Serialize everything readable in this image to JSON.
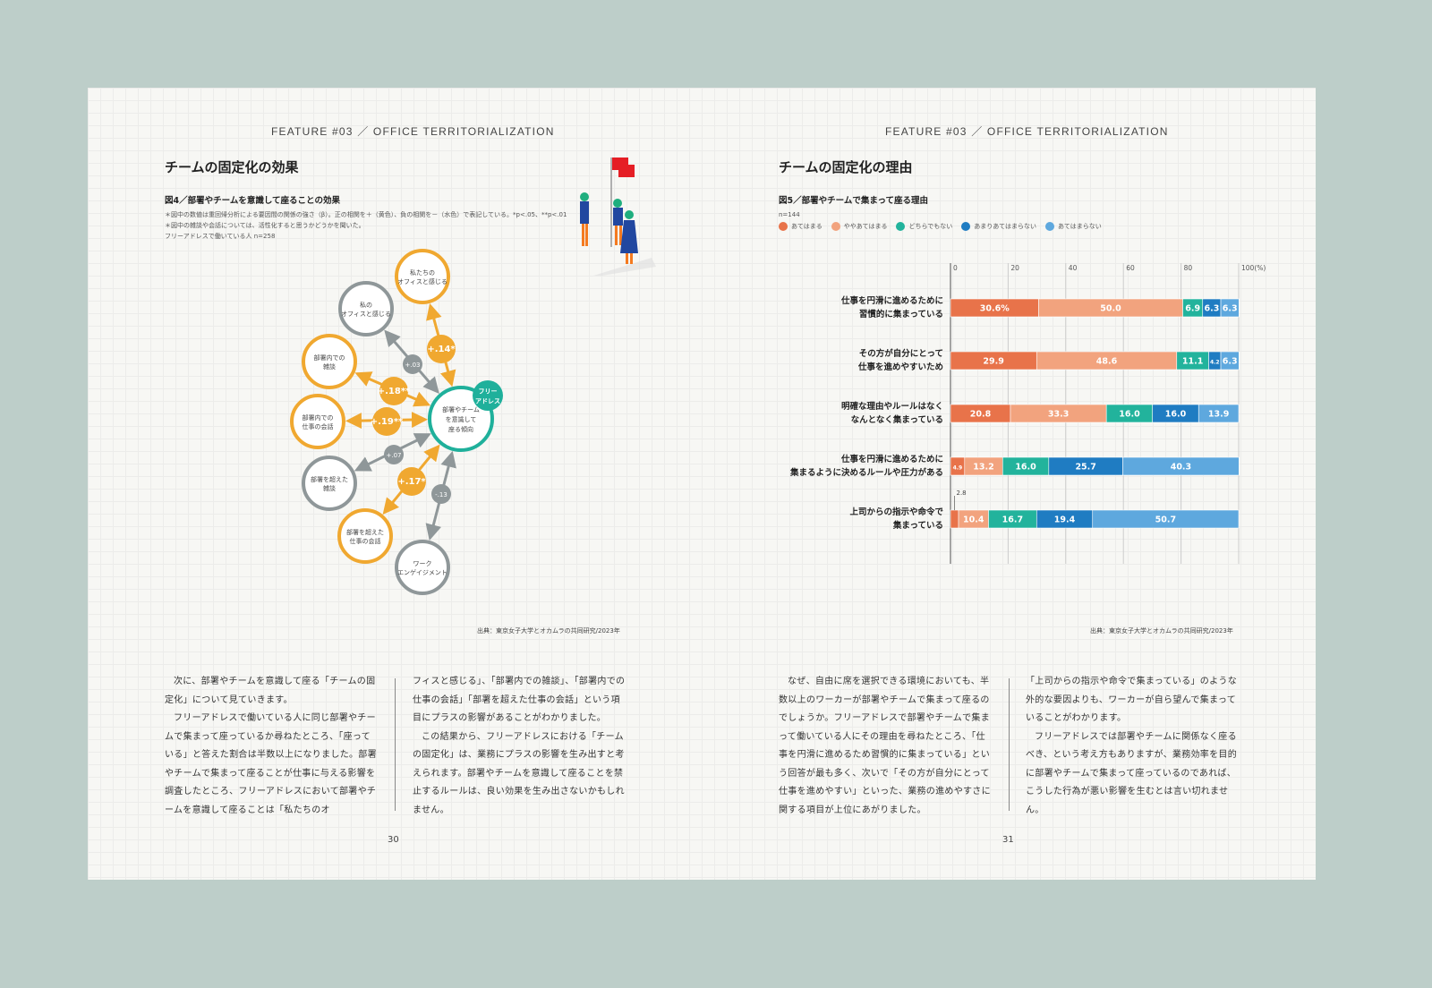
{
  "left": {
    "feature": "FEATURE #03 ／ OFFICE TERRITORIALIZATION",
    "title": "チームの固定化の効果",
    "figure_title": "図4／部署やチームを意識して座ることの効果",
    "notes": [
      "＊図中の数値は重回帰分析による要因間の関係の強さ（β）。正の相関を＋（黄色）、負の相関を－（水色）で表記している。*p<.05、**p<.01",
      "＊図中の雑談や会話については、活性化すると思うかどうかを聞いた。",
      "フリーアドレスで働いている人 n=258"
    ],
    "source": "出典：東京女子大学とオカムラの共同研究/2023年",
    "page": "30",
    "body1": [
      "次に、部署やチームを意識して座る「チームの固定化」について見ていきます。",
      "フリーアドレスで働いている人に同じ部署やチームで集まって座っているか尋ねたところ、「座っている」と答えた割合は半数以上になりました。部署やチームで集まって座ることが仕事に与える影響を調査したところ、フリーアドレスにおいて部署やチームを意識して座ることは「私たちのオ"
    ],
    "body2": [
      "フィスと感じる」、「部署内での雑談」、「部署内での仕事の会話」「部署を超えた仕事の会話」という項目にプラスの影響があることがわかりました。",
      "この結果から、フリーアドレスにおける「チームの固定化」は、業務にプラスの影響を生み出すと考えられます。部署やチームを意識して座ることを禁止するルールは、良い効果を生み出さないかもしれません。"
    ]
  },
  "diagram": {
    "colors": {
      "positive": "#f0a830",
      "neutral": "#8f9799",
      "center": "#1fb09b"
    },
    "center": {
      "label": "部署やチーム\nを意識して\n座る傾向",
      "badge": "フリー\nアドレス"
    },
    "nodes": [
      {
        "label": "私たちの\nオフィスと感じる",
        "coef": "+.14*",
        "sign": "positive"
      },
      {
        "label": "私の\nオフィスと感じる",
        "coef": "+.03",
        "sign": "neutral"
      },
      {
        "label": "部署内での\n雑談",
        "coef": "+.18**",
        "sign": "positive"
      },
      {
        "label": "部署内での\n仕事の会話",
        "coef": "+.19**",
        "sign": "positive"
      },
      {
        "label": "部署を超えた\n雑談",
        "coef": "+.07",
        "sign": "neutral"
      },
      {
        "label": "部署を超えた\n仕事の会話",
        "coef": "+.17*",
        "sign": "positive"
      },
      {
        "label": "ワーク\nエンゲイジメント",
        "coef": "-.13",
        "sign": "neutral"
      }
    ]
  },
  "right": {
    "feature": "FEATURE #03 ／ OFFICE TERRITORIALIZATION",
    "title": "チームの固定化の理由",
    "figure_title": "図5／部署やチームで集まって座る理由",
    "n": "n=144",
    "source": "出典：東京女子大学とオカムラの共同研究/2023年",
    "page": "31",
    "body1": [
      "なぜ、自由に席を選択できる環境においても、半数以上のワーカーが部署やチームで集まって座るのでしょうか。フリーアドレスで部署やチームで集まって働いている人にその理由を尋ねたところ、「仕事を円滑に進めるため習慣的に集まっている」という回答が最も多く、次いで「その方が自分にとって仕事を進めやすい」といった、業務の進めやすさに関する項目が上位にあがりました。"
    ],
    "body2": [
      "「上司からの指示や命令で集まっている」のような外的な要因よりも、ワーカーが自ら望んで集まっていることがわかります。",
      "フリーアドレスでは部署やチームに関係なく座るべき、という考え方もありますが、業務効率を目的に部署やチームで集まって座っているのであれば、こうした行為が悪い影響を生むとは言い切れません。"
    ]
  },
  "chart_data": {
    "type": "bar",
    "stacked": true,
    "orientation": "horizontal",
    "title": "図5／部署やチームで集まって座る理由",
    "xlim": [
      0,
      100
    ],
    "xticks": [
      "0",
      "20",
      "40",
      "60",
      "80",
      "100(%)"
    ],
    "grid": true,
    "legend_position": "top-left",
    "categories": [
      "仕事を円滑に進めるために\n習慣的に集まっている",
      "その方が自分にとって\n仕事を進めやすいため",
      "明確な理由やルールはなく\nなんとなく集まっている",
      "仕事を円滑に進めるために\n集まるように決めるルールや圧力がある",
      "上司からの指示や命令で\n集まっている"
    ],
    "series": [
      {
        "name": "あてはまる",
        "color": "#e8734a",
        "values": [
          30.6,
          29.9,
          20.8,
          4.9,
          2.8
        ],
        "labels": [
          "30.6%",
          "29.9",
          "20.8",
          "4.9",
          "2.8"
        ]
      },
      {
        "name": "ややあてはまる",
        "color": "#f2a37e",
        "values": [
          50.0,
          48.6,
          33.3,
          13.2,
          10.4
        ],
        "labels": [
          "50.0",
          "48.6",
          "33.3",
          "13.2",
          "10.4"
        ]
      },
      {
        "name": "どちらでもない",
        "color": "#22b39c",
        "values": [
          6.9,
          11.1,
          16.0,
          16.0,
          16.7
        ],
        "labels": [
          "6.9",
          "11.1",
          "16.0",
          "16.0",
          "16.7"
        ]
      },
      {
        "name": "あまりあてはまらない",
        "color": "#1f7cc2",
        "values": [
          6.3,
          4.2,
          16.0,
          25.7,
          19.4
        ],
        "labels": [
          "6.3",
          "4.2",
          "16.0",
          "25.7",
          "19.4"
        ]
      },
      {
        "name": "あてはまらない",
        "color": "#5ea8de",
        "values": [
          6.3,
          6.3,
          13.9,
          40.3,
          50.7
        ],
        "labels": [
          "6.3",
          "6.3",
          "13.9",
          "40.3",
          "50.7"
        ]
      }
    ]
  }
}
